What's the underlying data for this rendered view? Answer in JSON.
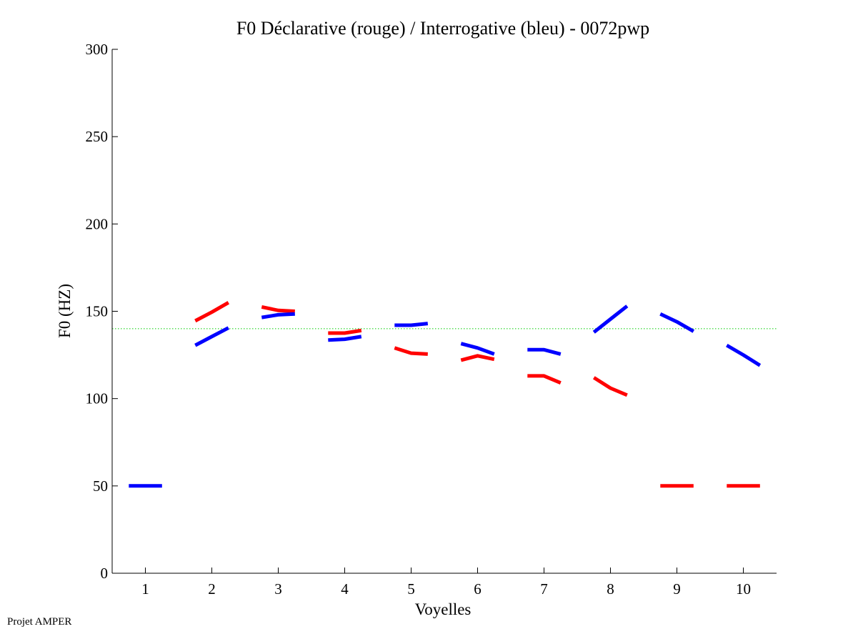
{
  "footer_text": "Projet AMPER",
  "chart_data": {
    "type": "line",
    "title": "F0 Déclarative (rouge) / Interrogative (bleu) - 0072pwp",
    "xlabel": "Voyelles",
    "ylabel": "F0 (HZ)",
    "xlim": [
      0.5,
      10.5
    ],
    "ylim": [
      0,
      300
    ],
    "x_ticks": [
      "1",
      "2",
      "3",
      "4",
      "5",
      "6",
      "7",
      "8",
      "9",
      "10"
    ],
    "y_ticks": [
      "0",
      "50",
      "100",
      "150",
      "200",
      "250",
      "300"
    ],
    "reference_line": {
      "y": 140,
      "color": "#00cc00",
      "style": "dotted"
    },
    "series": [
      {
        "color": "#ff0000",
        "segments": [
          {
            "vowel": 2,
            "values": [
              144.5,
              149.5,
              155
            ]
          },
          {
            "vowel": 3,
            "values": [
              152.5,
              150.5,
              150
            ]
          },
          {
            "vowel": 4,
            "values": [
              137.5,
              137.5,
              139
            ]
          },
          {
            "vowel": 5,
            "values": [
              129,
              126,
              125.5
            ]
          },
          {
            "vowel": 6,
            "values": [
              122,
              124.5,
              122.5
            ]
          },
          {
            "vowel": 7,
            "values": [
              113,
              113,
              109
            ]
          },
          {
            "vowel": 8,
            "values": [
              112,
              106,
              102
            ]
          },
          {
            "vowel": 9,
            "values": [
              50,
              50,
              50
            ]
          },
          {
            "vowel": 10,
            "values": [
              50,
              50,
              50
            ]
          }
        ]
      },
      {
        "color": "#0000ff",
        "segments": [
          {
            "vowel": 1,
            "values": [
              50,
              50,
              50
            ]
          },
          {
            "vowel": 2,
            "values": [
              130.5,
              135.5,
              140.5
            ]
          },
          {
            "vowel": 3,
            "values": [
              146.5,
              148,
              148.5
            ]
          },
          {
            "vowel": 4,
            "values": [
              133.5,
              134,
              135.5
            ]
          },
          {
            "vowel": 5,
            "values": [
              142,
              142,
              143
            ]
          },
          {
            "vowel": 6,
            "values": [
              131.5,
              129,
              125.5
            ]
          },
          {
            "vowel": 7,
            "values": [
              128,
              128,
              125.5
            ]
          },
          {
            "vowel": 8,
            "values": [
              138,
              145.5,
              153
            ]
          },
          {
            "vowel": 9,
            "values": [
              148.5,
              144,
              138.5
            ]
          },
          {
            "vowel": 10,
            "values": [
              130.5,
              125,
              119
            ]
          }
        ]
      }
    ]
  }
}
